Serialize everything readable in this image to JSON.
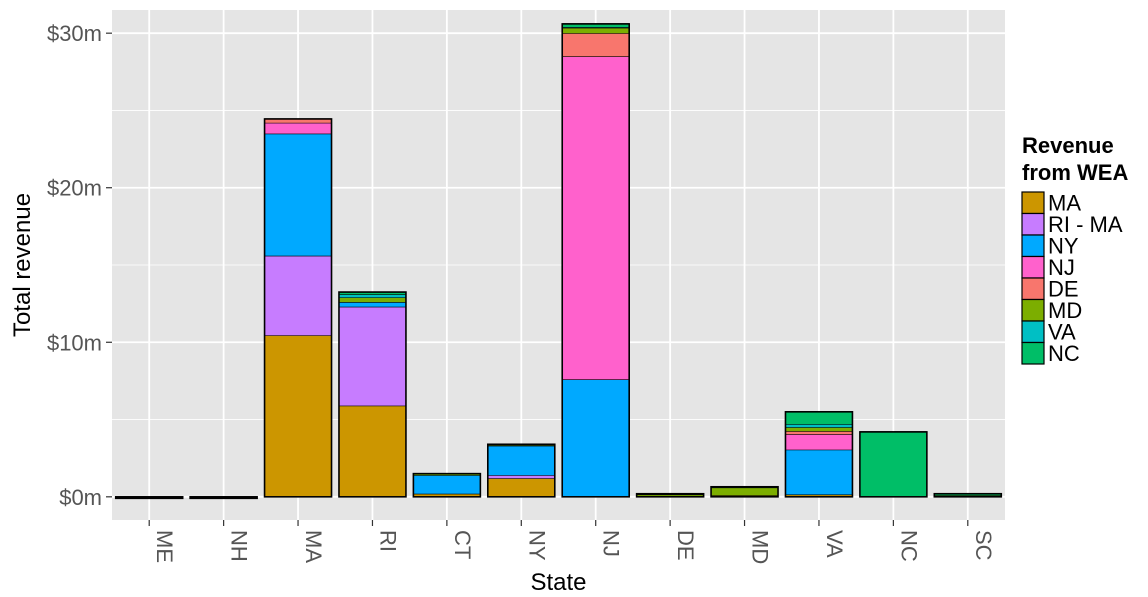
{
  "chart_data": {
    "type": "bar",
    "stacked": true,
    "xlabel": "State",
    "ylabel": "Total revenue",
    "ylim": [
      -1.5,
      31.5
    ],
    "y_ticks": [
      0,
      10,
      20,
      30
    ],
    "y_tick_labels": [
      "$0m",
      "$10m",
      "$20m",
      "$30m"
    ],
    "x_tick_rotation_degrees": 90,
    "grid": true,
    "legend": {
      "title_lines": [
        "Revenue",
        "from WEA"
      ],
      "position": "right"
    },
    "categories": [
      "ME",
      "NH",
      "MA",
      "RI",
      "CT",
      "NY",
      "NJ",
      "DE",
      "MD",
      "VA",
      "NC",
      "SC"
    ],
    "series": [
      {
        "name": "MA",
        "color": "#CC9600",
        "values": [
          0,
          0,
          10.45,
          5.9,
          0.2,
          1.2,
          0,
          0.05,
          0.1,
          0.15,
          0,
          0.05
        ]
      },
      {
        "name": "RI - MA",
        "color": "#C77CFF",
        "values": [
          0,
          0,
          5.15,
          6.4,
          0,
          0.2,
          0,
          0,
          0,
          0,
          0,
          0
        ]
      },
      {
        "name": "NY",
        "color": "#00A9FF",
        "values": [
          0,
          0,
          7.9,
          0.3,
          1.2,
          1.9,
          7.6,
          0,
          0,
          2.9,
          0,
          0
        ]
      },
      {
        "name": "NJ",
        "color": "#FF61CC",
        "values": [
          0,
          0,
          0.7,
          0,
          0,
          0,
          20.9,
          0,
          0,
          1.0,
          0,
          0
        ]
      },
      {
        "name": "DE",
        "color": "#F8766D",
        "values": [
          0,
          0,
          0.25,
          0,
          0,
          0,
          1.5,
          0,
          0,
          0.2,
          0,
          0
        ]
      },
      {
        "name": "MD",
        "color": "#7CAE00",
        "values": [
          0,
          0,
          0,
          0.3,
          0.1,
          0.05,
          0.35,
          0.1,
          0.5,
          0.25,
          0,
          0.05
        ]
      },
      {
        "name": "VA",
        "color": "#00BFC4",
        "values": [
          0,
          0,
          0,
          0.2,
          0,
          0,
          0.05,
          0,
          0,
          0.2,
          0,
          0
        ]
      },
      {
        "name": "NC",
        "color": "#00BE67",
        "values": [
          0,
          0,
          0,
          0.15,
          0,
          0.05,
          0.2,
          0.05,
          0.05,
          0.8,
          4.2,
          0.1
        ]
      }
    ]
  },
  "colors": {
    "panel_background": "#E5E5E5",
    "grid_line": "#FFFFFF",
    "bar_outline": "#000000",
    "tick_text": "#555555"
  }
}
